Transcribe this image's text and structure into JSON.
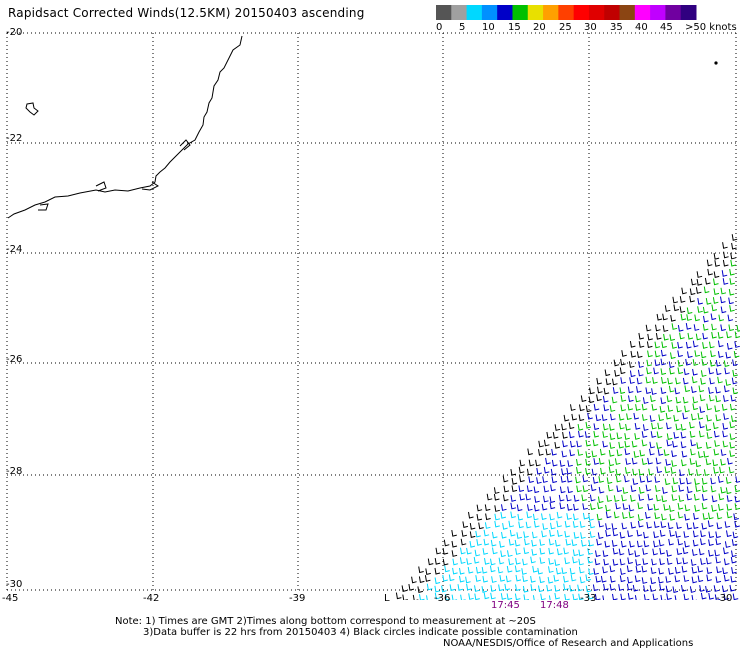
{
  "title": "Rapidsact Corrected Winds(12.5KM) 20150403 ascending",
  "colorbar": {
    "colors": [
      "#555555",
      "#a0a0a0",
      "#00d8ff",
      "#0090ff",
      "#0000c8",
      "#00c000",
      "#e8e000",
      "#ffa000",
      "#ff4000",
      "#ff0000",
      "#e00000",
      "#c00000",
      "#8b4513",
      "#ff00ff",
      "#c000ff",
      "#7000a0",
      "#300080"
    ],
    "labels": [
      "0",
      "5",
      "10",
      "15",
      "20",
      "25",
      "30",
      "35",
      "40",
      "45",
      ">50 knots"
    ]
  },
  "axes": {
    "y_labels": [
      "-20",
      "-22",
      "-24",
      "-26",
      "-28",
      "-30"
    ],
    "x_labels": [
      "-45",
      "-42",
      "-39",
      "-36",
      "-33",
      "-30"
    ],
    "lon_range": [
      -45,
      -30
    ],
    "lat_range": [
      -30,
      -20
    ]
  },
  "times": [
    "17:45",
    "17:48"
  ],
  "swath_start_marker": "L",
  "notes": {
    "line1": "Note: 1) Times are GMT 2)Times along bottom correspond to measurement at ~20S",
    "line2": "3)Data buffer is 22 hrs from 20150403 4) Black circles indicate possible contamination",
    "credit": "NOAA/NESDIS/Office of Research and Applications"
  },
  "wind_colors": {
    "rain_flag": "#000000",
    "low": "#00d8ff",
    "mid": "#0000c8",
    "high": "#00c000"
  }
}
